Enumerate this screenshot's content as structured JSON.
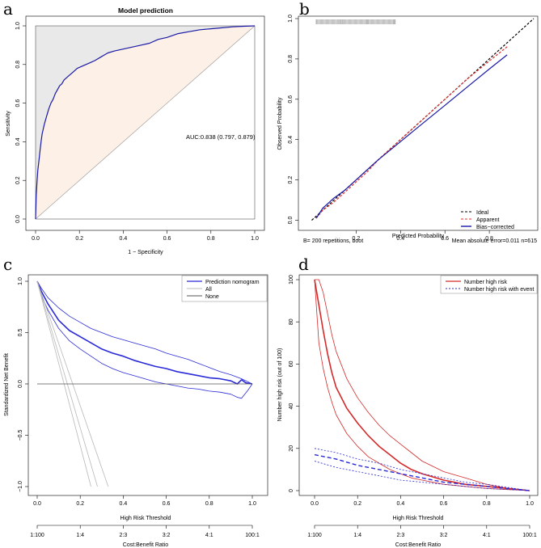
{
  "panels": {
    "a": {
      "letter": "a",
      "chart_data": {
        "type": "line",
        "title": "Model prediction",
        "xlabel": "1 − Specificity",
        "ylabel": "Sensitivity",
        "xlim": [
          0,
          1
        ],
        "ylim": [
          0,
          1
        ],
        "x_ticks": [
          "0.0",
          "0.2",
          "0.4",
          "0.6",
          "0.8",
          "1.0"
        ],
        "y_ticks": [
          "0.0",
          "0.2",
          "0.4",
          "0.6",
          "0.8",
          "1.0"
        ],
        "annotation": "AUC:0.838 (0.797, 0.879)",
        "series": [
          {
            "name": "ROC",
            "color": "#1a1aa6",
            "x": [
              0,
              0.003,
              0.006,
              0.01,
              0.015,
              0.02,
              0.025,
              0.03,
              0.04,
              0.05,
              0.06,
              0.07,
              0.08,
              0.09,
              0.1,
              0.11,
              0.12,
              0.13,
              0.15,
              0.17,
              0.19,
              0.21,
              0.23,
              0.25,
              0.27,
              0.3,
              0.33,
              0.36,
              0.4,
              0.44,
              0.48,
              0.52,
              0.56,
              0.6,
              0.65,
              0.7,
              0.75,
              0.8,
              0.85,
              0.9,
              0.95,
              1.0
            ],
            "y": [
              0,
              0.12,
              0.18,
              0.25,
              0.3,
              0.35,
              0.4,
              0.44,
              0.49,
              0.53,
              0.57,
              0.6,
              0.62,
              0.65,
              0.67,
              0.69,
              0.7,
              0.72,
              0.74,
              0.76,
              0.78,
              0.79,
              0.8,
              0.81,
              0.82,
              0.84,
              0.86,
              0.87,
              0.88,
              0.89,
              0.9,
              0.91,
              0.93,
              0.94,
              0.96,
              0.97,
              0.98,
              0.985,
              0.99,
              0.995,
              0.998,
              1.0
            ]
          }
        ],
        "reference_line": "diagonal",
        "fill_above_color": "#e9e9e9",
        "fill_below_color": "#fdf0e6"
      }
    },
    "b": {
      "letter": "b",
      "chart_data": {
        "type": "line",
        "title": "",
        "xlabel": "Predicted Probability",
        "ylabel": "Observed Probability",
        "xlim": [
          0,
          1
        ],
        "ylim": [
          0,
          1
        ],
        "x_ticks": [
          "0.2",
          "0.4",
          "0.6",
          "0.8"
        ],
        "y_ticks": [
          "0.0",
          "0.2",
          "0.4",
          "0.6",
          "0.8",
          "1.0"
        ],
        "footer_left": "B= 200 repetitions, boot",
        "footer_right": "Mean absolute error=0.011 n=615",
        "legend": [
          {
            "label": "Ideal",
            "color": "#000000",
            "dash": "3,2"
          },
          {
            "label": "Apparent",
            "color": "#e03030",
            "dash": "3,2"
          },
          {
            "label": "Bias−corrected",
            "color": "#1a1aa6",
            "dash": ""
          }
        ],
        "series": [
          {
            "name": "Ideal",
            "color": "#000000",
            "dash": "3,2",
            "x": [
              0,
              1
            ],
            "y": [
              0,
              1
            ]
          },
          {
            "name": "Apparent",
            "color": "#e03030",
            "dash": "3,2",
            "x": [
              0.02,
              0.05,
              0.1,
              0.15,
              0.2,
              0.25,
              0.3,
              0.4,
              0.5,
              0.6,
              0.7,
              0.8,
              0.88
            ],
            "y": [
              0.01,
              0.05,
              0.09,
              0.14,
              0.19,
              0.24,
              0.3,
              0.4,
              0.5,
              0.6,
              0.7,
              0.79,
              0.86
            ]
          },
          {
            "name": "Bias−corrected",
            "color": "#1a1aa6",
            "dash": "",
            "x": [
              0.02,
              0.05,
              0.1,
              0.15,
              0.2,
              0.25,
              0.3,
              0.4,
              0.5,
              0.6,
              0.7,
              0.8,
              0.88
            ],
            "y": [
              0.01,
              0.06,
              0.11,
              0.15,
              0.2,
              0.25,
              0.3,
              0.39,
              0.48,
              0.57,
              0.66,
              0.75,
              0.82
            ]
          }
        ],
        "rug_color": "#8a8a8a"
      }
    },
    "c": {
      "letter": "c",
      "chart_data": {
        "type": "line",
        "title": "",
        "xlabel": "High Risk Threshold",
        "ylabel": "Standardized Net Benefit",
        "xlim": [
          0,
          1
        ],
        "ylim": [
          -1,
          1
        ],
        "x_ticks": [
          "0.0",
          "0.2",
          "0.4",
          "0.6",
          "0.8",
          "1.0"
        ],
        "y_ticks": [
          "−1.0",
          "−0.5",
          "0.0",
          "0.5",
          "1.0"
        ],
        "cost_benefit_label": "Cost:Benefit Ratio",
        "cost_benefit_ticks": [
          "1:100",
          "1:4",
          "2:3",
          "3:2",
          "4:1",
          "100:1"
        ],
        "legend": [
          {
            "label": "Prediction nomogram",
            "color": "#2a2ad8"
          },
          {
            "label": "All",
            "color": "#b8b8b8"
          },
          {
            "label": "None",
            "color": "#555555"
          }
        ],
        "series": [
          {
            "name": "Prediction nomogram",
            "color": "#2a2ad8",
            "width": 1.6,
            "x": [
              0,
              0.02,
              0.05,
              0.1,
              0.15,
              0.2,
              0.25,
              0.3,
              0.35,
              0.4,
              0.45,
              0.5,
              0.55,
              0.6,
              0.65,
              0.7,
              0.75,
              0.8,
              0.85,
              0.9,
              0.93,
              0.95,
              0.97,
              1.0
            ],
            "y": [
              1.0,
              0.9,
              0.78,
              0.62,
              0.52,
              0.46,
              0.4,
              0.34,
              0.3,
              0.27,
              0.23,
              0.2,
              0.17,
              0.15,
              0.12,
              0.1,
              0.08,
              0.06,
              0.05,
              0.03,
              0.0,
              0.04,
              0.01,
              0.0
            ]
          },
          {
            "name": "Prediction nomogram upper CI",
            "color": "#2a2ad8",
            "width": 0.8,
            "x": [
              0,
              0.02,
              0.05,
              0.1,
              0.15,
              0.2,
              0.25,
              0.3,
              0.35,
              0.4,
              0.45,
              0.5,
              0.55,
              0.6,
              0.65,
              0.7,
              0.75,
              0.8,
              0.85,
              0.9,
              0.95,
              1.0
            ],
            "y": [
              1.0,
              0.93,
              0.84,
              0.74,
              0.66,
              0.6,
              0.54,
              0.5,
              0.46,
              0.43,
              0.4,
              0.37,
              0.34,
              0.3,
              0.27,
              0.24,
              0.2,
              0.16,
              0.12,
              0.09,
              0.05,
              0.0
            ]
          },
          {
            "name": "Prediction nomogram lower CI",
            "color": "#2a2ad8",
            "width": 0.8,
            "x": [
              0,
              0.02,
              0.05,
              0.1,
              0.15,
              0.2,
              0.25,
              0.3,
              0.35,
              0.4,
              0.45,
              0.5,
              0.55,
              0.6,
              0.65,
              0.7,
              0.75,
              0.8,
              0.85,
              0.9,
              0.93,
              0.95,
              0.98,
              1.0
            ],
            "y": [
              1.0,
              0.86,
              0.72,
              0.54,
              0.42,
              0.34,
              0.27,
              0.2,
              0.15,
              0.11,
              0.08,
              0.05,
              0.02,
              0.0,
              -0.02,
              -0.04,
              -0.05,
              -0.07,
              -0.08,
              -0.1,
              -0.13,
              -0.14,
              -0.06,
              0.0
            ]
          },
          {
            "name": "All",
            "color": "#b8b8b8",
            "width": 0.8,
            "x": [
              0,
              0.28
            ],
            "y": [
              1.0,
              -1.0
            ]
          },
          {
            "name": "All lower",
            "color": "#b8b8b8",
            "width": 0.8,
            "x": [
              0,
              0.25
            ],
            "y": [
              1.0,
              -1.0
            ]
          },
          {
            "name": "All upper",
            "color": "#b8b8b8",
            "width": 0.8,
            "x": [
              0,
              0.33
            ],
            "y": [
              1.0,
              -1.0
            ]
          },
          {
            "name": "None",
            "color": "#555555",
            "width": 0.8,
            "x": [
              0,
              1
            ],
            "y": [
              0,
              0
            ]
          }
        ]
      }
    },
    "d": {
      "letter": "d",
      "chart_data": {
        "type": "line",
        "title": "",
        "xlabel": "High Risk Threshold",
        "ylabel": "Number high risk (out of 100)",
        "xlim": [
          0,
          1
        ],
        "ylim": [
          0,
          100
        ],
        "x_ticks": [
          "0.0",
          "0.2",
          "0.4",
          "0.6",
          "0.8",
          "1.0"
        ],
        "y_ticks": [
          "0",
          "20",
          "40",
          "60",
          "80",
          "100"
        ],
        "cost_benefit_label": "Cost:Benefit Ratio",
        "cost_benefit_ticks": [
          "1:100",
          "1:4",
          "2:3",
          "3:2",
          "4:1",
          "100:1"
        ],
        "legend": [
          {
            "label": "Number high risk",
            "color": "#d42a2a",
            "dash": ""
          },
          {
            "label": "Number high risk with event",
            "color": "#2a2ad8",
            "dash": "2,2"
          }
        ],
        "series": [
          {
            "name": "Number high risk",
            "color": "#d42a2a",
            "width": 1.6,
            "dash": "",
            "x": [
              0,
              0.02,
              0.04,
              0.06,
              0.08,
              0.1,
              0.15,
              0.2,
              0.25,
              0.3,
              0.35,
              0.4,
              0.45,
              0.5,
              0.6,
              0.7,
              0.8,
              0.9,
              1.0
            ],
            "y": [
              100,
              88,
              76,
              65,
              56,
              49,
              39,
              32,
              26,
              21,
              17,
              13,
              10,
              8,
              5,
              3,
              2,
              1,
              0
            ]
          },
          {
            "name": "Number high risk upper CI",
            "color": "#d42a2a",
            "width": 0.8,
            "dash": "",
            "x": [
              0,
              0.02,
              0.04,
              0.06,
              0.08,
              0.1,
              0.15,
              0.2,
              0.25,
              0.3,
              0.35,
              0.4,
              0.45,
              0.5,
              0.6,
              0.7,
              0.8,
              0.9,
              1.0
            ],
            "y": [
              100,
              100,
              94,
              84,
              74,
              66,
              53,
              44,
              37,
              31,
              26,
              22,
              18,
              14,
              9,
              6,
              3,
              1,
              0
            ]
          },
          {
            "name": "Number high risk lower CI",
            "color": "#d42a2a",
            "width": 0.8,
            "dash": "",
            "x": [
              0,
              0.02,
              0.04,
              0.06,
              0.08,
              0.1,
              0.15,
              0.2,
              0.25,
              0.3,
              0.35,
              0.4,
              0.45,
              0.5,
              0.6,
              0.7,
              0.8,
              0.9,
              1.0
            ],
            "y": [
              100,
              70,
              58,
              49,
              42,
              36,
              27,
              21,
              16,
              13,
              10,
              8,
              6,
              5,
              3,
              2,
              1,
              0.5,
              0
            ]
          },
          {
            "name": "Number high risk with event",
            "color": "#2a2ad8",
            "width": 1.4,
            "dash": "5,3",
            "x": [
              0,
              0.1,
              0.2,
              0.3,
              0.4,
              0.5,
              0.6,
              0.7,
              0.8,
              0.9,
              1.0
            ],
            "y": [
              17,
              15,
              12,
              10,
              8,
              6,
              4,
              3,
              2,
              1,
              0
            ]
          },
          {
            "name": "With event upper CI",
            "color": "#2a2ad8",
            "width": 0.8,
            "dash": "2,2",
            "x": [
              0,
              0.1,
              0.2,
              0.3,
              0.4,
              0.5,
              0.6,
              0.7,
              0.8,
              0.9,
              1.0
            ],
            "y": [
              20,
              18,
              15,
              13,
              10,
              8,
              6,
              4,
              3,
              1.5,
              0
            ]
          },
          {
            "name": "With event lower CI",
            "color": "#2a2ad8",
            "width": 0.8,
            "dash": "2,2",
            "x": [
              0,
              0.1,
              0.2,
              0.3,
              0.4,
              0.5,
              0.6,
              0.7,
              0.8,
              0.9,
              1.0
            ],
            "y": [
              14,
              11,
              9,
              7,
              5,
              4,
              3,
              2,
              1,
              0.5,
              0
            ]
          }
        ]
      }
    }
  }
}
